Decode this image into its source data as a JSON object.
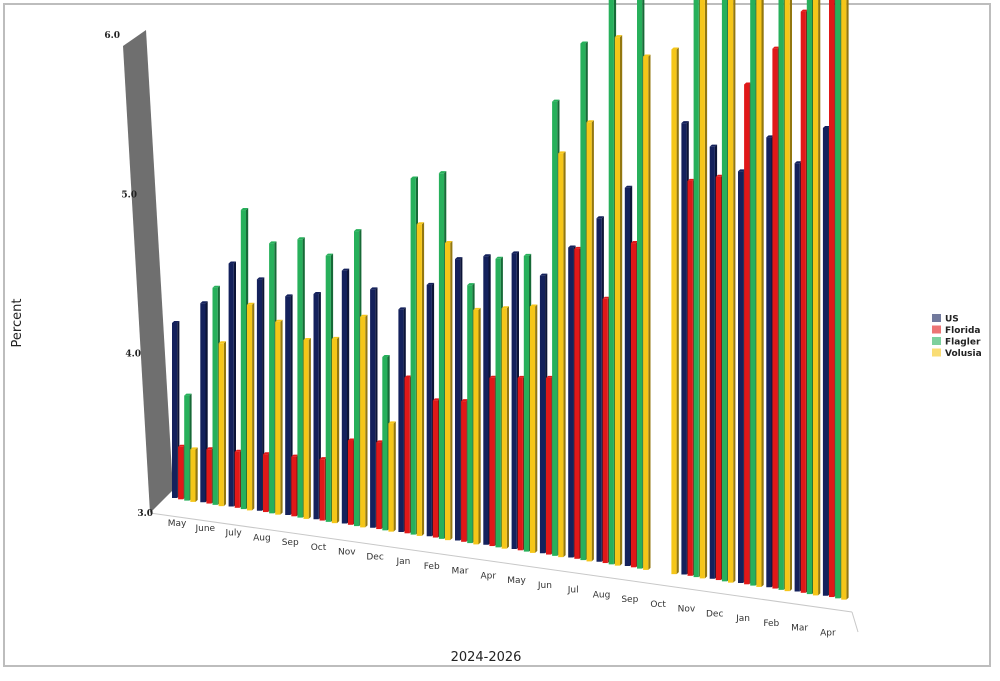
{
  "chart_data": {
    "type": "bar",
    "title": "",
    "xlabel": "2024-2026",
    "ylabel": "Percent",
    "ylim": [
      3.0,
      6.0
    ],
    "yticks": [
      "3.0",
      "4.0",
      "5.0",
      "6.0"
    ],
    "categories": [
      "May",
      "June",
      "July",
      "Aug",
      "Sep",
      "Oct",
      "Nov",
      "Dec",
      "Jan",
      "Feb",
      "Mar",
      "Apr",
      "May",
      "Jun",
      "Jul",
      "Aug",
      "Sep",
      "Oct",
      "Nov",
      "Dec",
      "Jan",
      "Feb",
      "Mar",
      "Apr"
    ],
    "legend_position": "right",
    "series": [
      {
        "name": "US",
        "color": "#14215c",
        "values": [
          4.0,
          4.1,
          4.3,
          4.2,
          4.1,
          4.1,
          4.2,
          4.1,
          4.0,
          4.1,
          4.2,
          4.2,
          4.2,
          4.1,
          4.2,
          4.3,
          4.4,
          null,
          4.6,
          4.5,
          4.4,
          4.5,
          4.4,
          4.5
        ]
      },
      {
        "name": "Florida",
        "color": "#e01818",
        "values": [
          3.3,
          3.3,
          3.3,
          3.3,
          3.3,
          3.3,
          3.4,
          3.4,
          3.7,
          3.6,
          3.6,
          3.7,
          3.7,
          3.7,
          4.2,
          4.0,
          4.2,
          null,
          4.4,
          4.4,
          4.7,
          4.8,
          4.9,
          5.0
        ]
      },
      {
        "name": "Flagler",
        "color": "#27b05b",
        "values": [
          3.6,
          4.2,
          4.6,
          4.4,
          4.4,
          4.3,
          4.4,
          3.8,
          4.6,
          4.6,
          4.1,
          4.2,
          4.2,
          4.8,
          5.0,
          5.4,
          5.2,
          null,
          6.1,
          5.6,
          6.3,
          6.1,
          5.6,
          5.9
        ]
      },
      {
        "name": "Volusia",
        "color": "#f5c619",
        "values": [
          3.3,
          3.9,
          4.1,
          4.0,
          3.9,
          3.9,
          4.0,
          3.5,
          4.4,
          4.3,
          4.0,
          4.0,
          4.0,
          4.6,
          4.7,
          5.0,
          4.9,
          4.9,
          5.7,
          5.3,
          5.9,
          5.6,
          5.6,
          5.7
        ]
      }
    ]
  }
}
